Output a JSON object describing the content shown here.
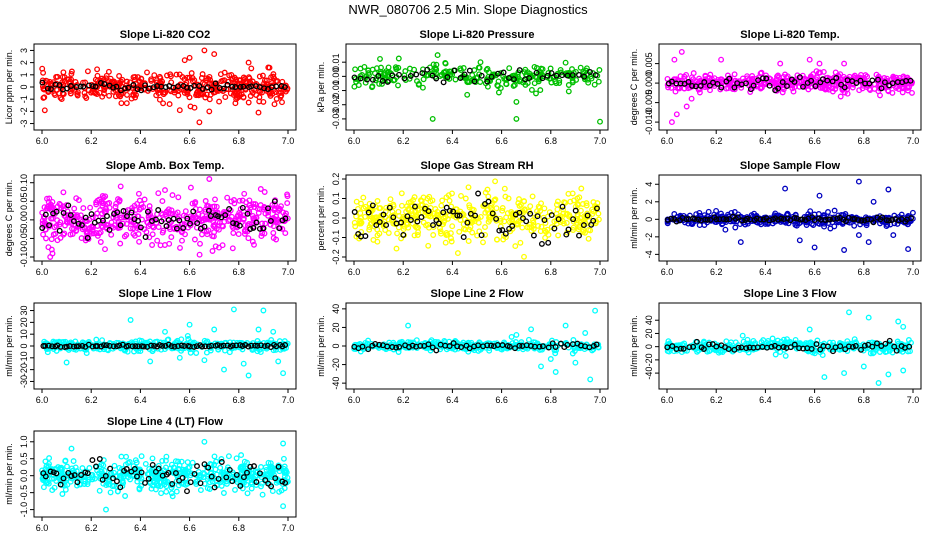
{
  "title": "NWR_080706  2.5 Min. Slope Diagnostics",
  "chart_data": [
    {
      "type": "scatter",
      "title": "Slope Li-820 CO2",
      "ylabel": "Licor ppm per min.",
      "xlim": [
        6.0,
        7.0
      ],
      "ylim": [
        -3.2,
        3.2
      ],
      "xticks": [
        "6.0",
        "6.2",
        "6.4",
        "6.6",
        "6.8",
        "7.0"
      ],
      "yticks": [
        "-3",
        "-2",
        "-1",
        "0",
        "1",
        "2",
        "3"
      ],
      "series": [
        {
          "color": "#ff0000",
          "count": 420,
          "spread": 0.55
        },
        {
          "color": "#000000",
          "count": 60,
          "spread": 0.15
        }
      ],
      "outliers": [
        [
          6.6,
          2.4
        ],
        [
          6.62,
          -1.7
        ],
        [
          6.64,
          -2.9
        ],
        [
          6.66,
          3.0
        ],
        [
          6.68,
          -2.0
        ],
        [
          6.7,
          2.7
        ],
        [
          6.84,
          2.0
        ],
        [
          6.88,
          -2.1
        ],
        [
          6.92,
          1.6
        ],
        [
          6.56,
          -1.9
        ],
        [
          6.58,
          2.2
        ],
        [
          6.72,
          -1.2
        ]
      ]
    },
    {
      "type": "scatter",
      "title": "Slope Li-820 Pressure",
      "ylabel": "kPa per min.",
      "xlim": [
        6.0,
        7.0
      ],
      "ylim": [
        -0.035,
        0.02
      ],
      "xticks": [
        "6.0",
        "6.2",
        "6.4",
        "6.6",
        "6.8",
        "7.0"
      ],
      "yticks": [
        "-0.03",
        "-0.02",
        "-0.01",
        "0.00",
        "0.01"
      ],
      "series": [
        {
          "color": "#00c000",
          "count": 260,
          "spread": 0.004
        },
        {
          "color": "#000000",
          "count": 45,
          "spread": 0.002
        }
      ],
      "outliers": [
        [
          6.32,
          -0.03
        ],
        [
          6.66,
          -0.03
        ],
        [
          7.0,
          -0.032
        ],
        [
          6.34,
          0.015
        ],
        [
          6.46,
          -0.013
        ],
        [
          6.66,
          -0.018
        ],
        [
          6.74,
          -0.012
        ],
        [
          6.28,
          -0.008
        ]
      ]
    },
    {
      "type": "scatter",
      "title": "Slope Li-820 Temp.",
      "ylabel": "degrees C per min.",
      "xlim": [
        6.0,
        7.0
      ],
      "ylim": [
        -0.011,
        0.009
      ],
      "xticks": [
        "6.0",
        "6.2",
        "6.4",
        "6.6",
        "6.8",
        "7.0"
      ],
      "yticks": [
        "-0.010",
        "-0.005",
        "0.000",
        "0.005"
      ],
      "series": [
        {
          "color": "#ff00ff",
          "count": 420,
          "spread": 0.0012
        },
        {
          "color": "#000000",
          "count": 60,
          "spread": 0.0007
        }
      ],
      "outliers": [
        [
          6.02,
          -0.01
        ],
        [
          6.04,
          -0.008
        ],
        [
          6.06,
          0.008
        ],
        [
          6.08,
          -0.006
        ],
        [
          6.03,
          0.006
        ],
        [
          6.1,
          -0.004
        ],
        [
          6.22,
          0.006
        ],
        [
          6.46,
          0.005
        ],
        [
          6.58,
          0.006
        ],
        [
          6.62,
          0.005
        ],
        [
          6.72,
          0.005
        ]
      ]
    },
    {
      "type": "scatter",
      "title": "Slope Amb. Box Temp.",
      "ylabel": "degrees C per min.",
      "xlim": [
        6.0,
        7.0
      ],
      "ylim": [
        -0.1,
        0.11
      ],
      "xticks": [
        "6.0",
        "6.2",
        "6.4",
        "6.6",
        "6.8",
        "7.0"
      ],
      "yticks": [
        "-0.10",
        "-0.05",
        "0.00",
        "0.05",
        "0.10"
      ],
      "series": [
        {
          "color": "#ff00ff",
          "count": 500,
          "spread": 0.032
        },
        {
          "color": "#000000",
          "count": 70,
          "spread": 0.02
        }
      ],
      "outliers": [
        [
          6.68,
          0.11
        ],
        [
          6.32,
          0.09
        ],
        [
          6.04,
          -0.08
        ],
        [
          6.5,
          0.08
        ]
      ]
    },
    {
      "type": "scatter",
      "title": "Slope Gas Stream RH",
      "ylabel": "percent per min.",
      "xlim": [
        6.0,
        7.0
      ],
      "ylim": [
        -0.2,
        0.2
      ],
      "xticks": [
        "6.0",
        "6.2",
        "6.4",
        "6.6",
        "6.8",
        "7.0"
      ],
      "yticks": [
        "-0.2",
        "-0.1",
        "0.0",
        "0.1",
        "0.2"
      ],
      "series": [
        {
          "color": "#ffff00",
          "count": 450,
          "spread": 0.06
        },
        {
          "color": "#000000",
          "count": 70,
          "spread": 0.05
        }
      ],
      "outliers": []
    },
    {
      "type": "scatter",
      "title": "Slope Sample Flow",
      "ylabel": "ml/min per min.",
      "xlim": [
        6.0,
        7.0
      ],
      "ylim": [
        -4.3,
        4.6
      ],
      "xticks": [
        "6.0",
        "6.2",
        "6.4",
        "6.6",
        "6.8",
        "7.0"
      ],
      "yticks": [
        "-4",
        "-2",
        "0",
        "2",
        "4"
      ],
      "series": [
        {
          "color": "#0000c0",
          "count": 360,
          "spread": 0.35
        },
        {
          "color": "#000000",
          "count": 80,
          "spread": 0.12
        }
      ],
      "outliers": [
        [
          6.78,
          4.3
        ],
        [
          6.9,
          3.4
        ],
        [
          6.48,
          3.5
        ],
        [
          6.72,
          -3.5
        ],
        [
          6.98,
          -3.4
        ],
        [
          6.82,
          -2.6
        ],
        [
          6.3,
          -2.6
        ],
        [
          6.54,
          -2.4
        ],
        [
          6.84,
          2.0
        ],
        [
          6.62,
          2.7
        ],
        [
          6.92,
          -1.8
        ],
        [
          6.6,
          -3.2
        ],
        [
          6.78,
          -1.8
        ]
      ]
    },
    {
      "type": "scatter",
      "title": "Slope Line 1 Flow",
      "ylabel": "ml/min per min.",
      "xlim": [
        6.0,
        7.0
      ],
      "ylim": [
        -33,
        33
      ],
      "xticks": [
        "6.0",
        "6.2",
        "6.4",
        "6.6",
        "6.8",
        "7.0"
      ],
      "yticks": [
        "-30",
        "-20",
        "-10",
        "0",
        "10",
        "20",
        "30"
      ],
      "series": [
        {
          "color": "#00ffff",
          "count": 340,
          "spread": 2.4
        },
        {
          "color": "#000000",
          "count": 80,
          "spread": 0.5
        }
      ],
      "outliers": [
        [
          6.36,
          22
        ],
        [
          6.78,
          31
        ],
        [
          6.9,
          30
        ],
        [
          6.98,
          -23
        ],
        [
          6.96,
          -13
        ],
        [
          6.74,
          -20
        ],
        [
          6.82,
          -15
        ],
        [
          6.66,
          -12
        ],
        [
          6.1,
          -14
        ],
        [
          6.5,
          12
        ],
        [
          6.88,
          14
        ],
        [
          6.6,
          18
        ],
        [
          6.94,
          12
        ],
        [
          6.7,
          14
        ],
        [
          6.44,
          -13
        ],
        [
          6.56,
          -10
        ],
        [
          6.84,
          -25
        ]
      ]
    },
    {
      "type": "scatter",
      "title": "Slope Line 2 Flow",
      "ylabel": "ml/min per min.",
      "xlim": [
        6.0,
        7.0
      ],
      "ylim": [
        -42,
        42
      ],
      "xticks": [
        "6.0",
        "6.2",
        "6.4",
        "6.6",
        "6.8",
        "7.0"
      ],
      "yticks": [
        "-40",
        "-20",
        "0",
        "20",
        "40"
      ],
      "series": [
        {
          "color": "#00ffff",
          "count": 340,
          "spread": 2.6
        },
        {
          "color": "#000000",
          "count": 60,
          "spread": 1.5
        }
      ],
      "outliers": [
        [
          6.22,
          22
        ],
        [
          6.98,
          38
        ],
        [
          6.96,
          -36
        ],
        [
          6.76,
          -22
        ],
        [
          6.82,
          -28
        ],
        [
          6.9,
          -18
        ],
        [
          6.72,
          18
        ],
        [
          6.86,
          22
        ],
        [
          6.66,
          12
        ],
        [
          6.94,
          14
        ],
        [
          6.8,
          -14
        ]
      ]
    },
    {
      "type": "scatter",
      "title": "Slope Line 3 Flow",
      "ylabel": "ml/min per min.",
      "xlim": [
        6.0,
        7.0
      ],
      "ylim": [
        -58,
        60
      ],
      "xticks": [
        "6.0",
        "6.2",
        "6.4",
        "6.6",
        "6.8",
        "7.0"
      ],
      "yticks": [
        "-40",
        "-20",
        "0",
        "20",
        "40"
      ],
      "series": [
        {
          "color": "#00ffff",
          "count": 360,
          "spread": 5
        },
        {
          "color": "#000000",
          "count": 60,
          "spread": 3
        }
      ],
      "outliers": [
        [
          6.74,
          52
        ],
        [
          6.82,
          44
        ],
        [
          6.64,
          -46
        ],
        [
          6.72,
          -40
        ],
        [
          6.9,
          -42
        ],
        [
          6.94,
          38
        ],
        [
          6.86,
          -55
        ],
        [
          6.96,
          30
        ],
        [
          6.58,
          26
        ],
        [
          6.8,
          -30
        ],
        [
          6.96,
          -36
        ]
      ]
    },
    {
      "type": "scatter",
      "title": "Slope Line 4 (LT) Flow",
      "ylabel": "ml/min per min.",
      "xlim": [
        6.0,
        7.0
      ],
      "ylim": [
        -1.1,
        1.2
      ],
      "xticks": [
        "6.0",
        "6.2",
        "6.4",
        "6.6",
        "6.8",
        "7.0"
      ],
      "yticks": [
        "-1.0",
        "-0.5",
        "0.0",
        "0.5",
        "1.0"
      ],
      "series": [
        {
          "color": "#00ffff",
          "count": 500,
          "spread": 0.22
        },
        {
          "color": "#000000",
          "count": 70,
          "spread": 0.18
        }
      ],
      "outliers": [
        [
          6.26,
          -1.0
        ],
        [
          6.66,
          1.0
        ],
        [
          6.98,
          0.95
        ],
        [
          6.98,
          -0.9
        ],
        [
          6.12,
          0.8
        ]
      ]
    }
  ]
}
